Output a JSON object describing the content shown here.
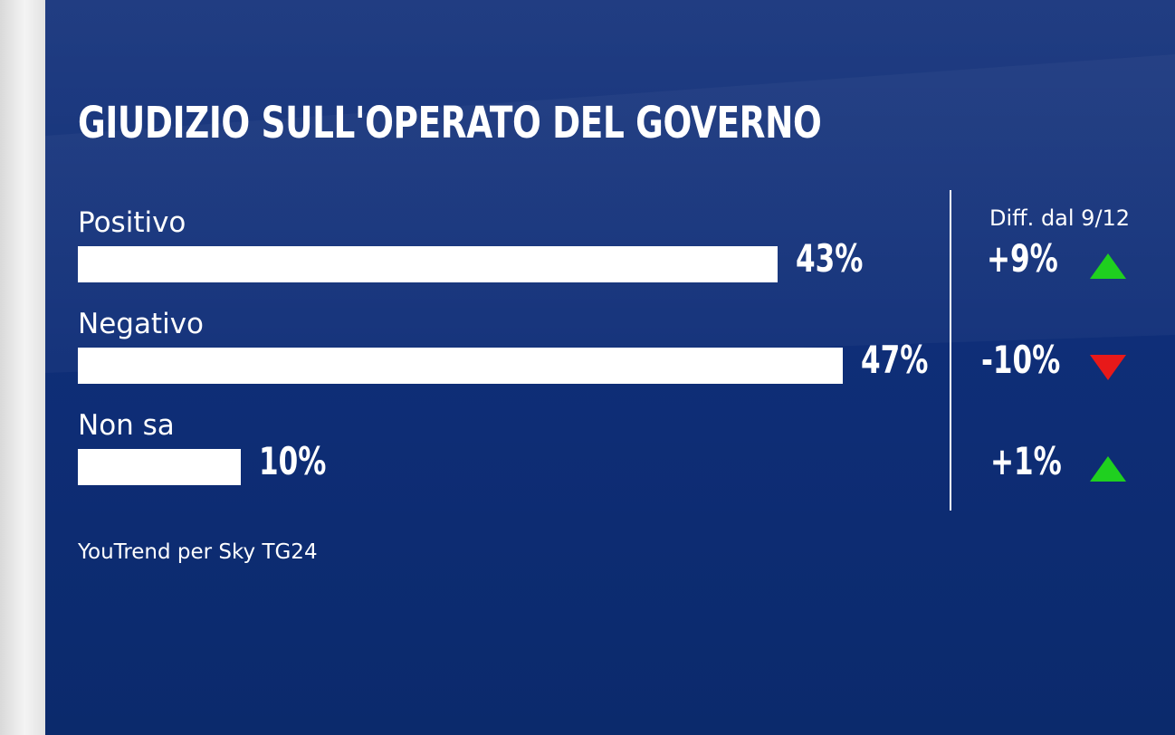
{
  "colors": {
    "background": "#0e2a6e",
    "bar": "#ffffff",
    "up": "#1fd01f",
    "down": "#e81919"
  },
  "chart_data": {
    "type": "bar",
    "orientation": "horizontal",
    "title": "GIUDIZIO SULL'OPERATO DEL GOVERNO",
    "categories": [
      "Positivo",
      "Negativo",
      "Non sa"
    ],
    "values": [
      43,
      47,
      10
    ],
    "value_labels": [
      "43%",
      "47%",
      "10%"
    ],
    "diff_header": "Diff. dal 9/12",
    "diffs": [
      9,
      -10,
      1
    ],
    "diff_labels": [
      "+9%",
      "-10%",
      "+1%"
    ],
    "diff_icons": [
      "triangle-up-icon",
      "triangle-down-icon",
      "triangle-up-icon"
    ],
    "source": "YouTrend per Sky TG24",
    "xlim": [
      0,
      47
    ]
  }
}
